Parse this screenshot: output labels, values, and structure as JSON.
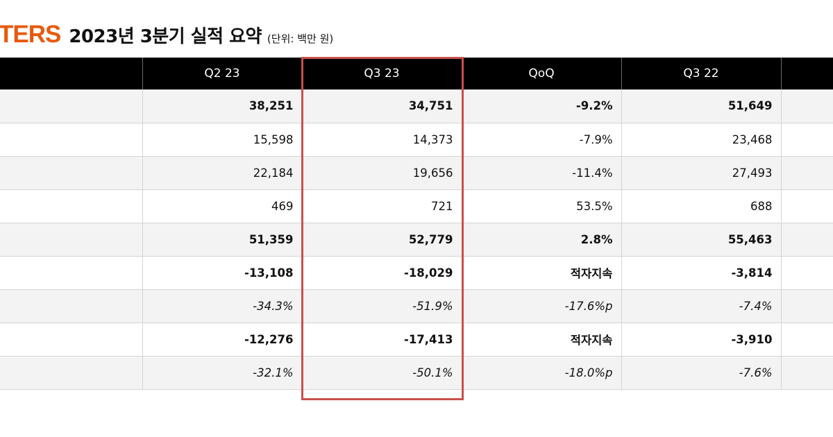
{
  "header": {
    "brand": "TERS",
    "title": "2023년 3분기 실적 요약",
    "unit": "(단위: 백만 원)"
  },
  "table": {
    "columns": [
      "",
      "Q2 23",
      "Q3 23",
      "QoQ",
      "Q3 22",
      ""
    ],
    "rows": [
      {
        "style": "shade bold",
        "cells": [
          "",
          "38,251",
          "34,751",
          "-9.2%",
          "51,649",
          ""
        ]
      },
      {
        "style": "plain",
        "cells": [
          "",
          "15,598",
          "14,373",
          "-7.9%",
          "23,468",
          ""
        ]
      },
      {
        "style": "shade",
        "cells": [
          "",
          "22,184",
          "19,656",
          "-11.4%",
          "27,493",
          ""
        ]
      },
      {
        "style": "plain",
        "cells": [
          "",
          "469",
          "721",
          "53.5%",
          "688",
          ""
        ]
      },
      {
        "style": "shade bold",
        "cells": [
          "",
          "51,359",
          "52,779",
          "2.8%",
          "55,463",
          ""
        ]
      },
      {
        "style": "plain bold",
        "cells": [
          "",
          "-13,108",
          "-18,029",
          "적자지속",
          "-3,814",
          ""
        ]
      },
      {
        "style": "shade ital",
        "cells": [
          "",
          "-34.3%",
          "-51.9%",
          "-17.6%p",
          "-7.4%",
          ""
        ]
      },
      {
        "style": "plain bold",
        "cells": [
          "",
          "-12,276",
          "-17,413",
          "적자지속",
          "-3,910",
          ""
        ]
      },
      {
        "style": "shade ital",
        "cells": [
          "",
          "-32.1%",
          "-50.1%",
          "-18.0%p",
          "-7.6%",
          ""
        ]
      }
    ]
  },
  "colors": {
    "brand": "#e8590c",
    "header_bg": "#000000",
    "highlight_border": "#c9504b",
    "row_shade": "#f3f3f3"
  }
}
